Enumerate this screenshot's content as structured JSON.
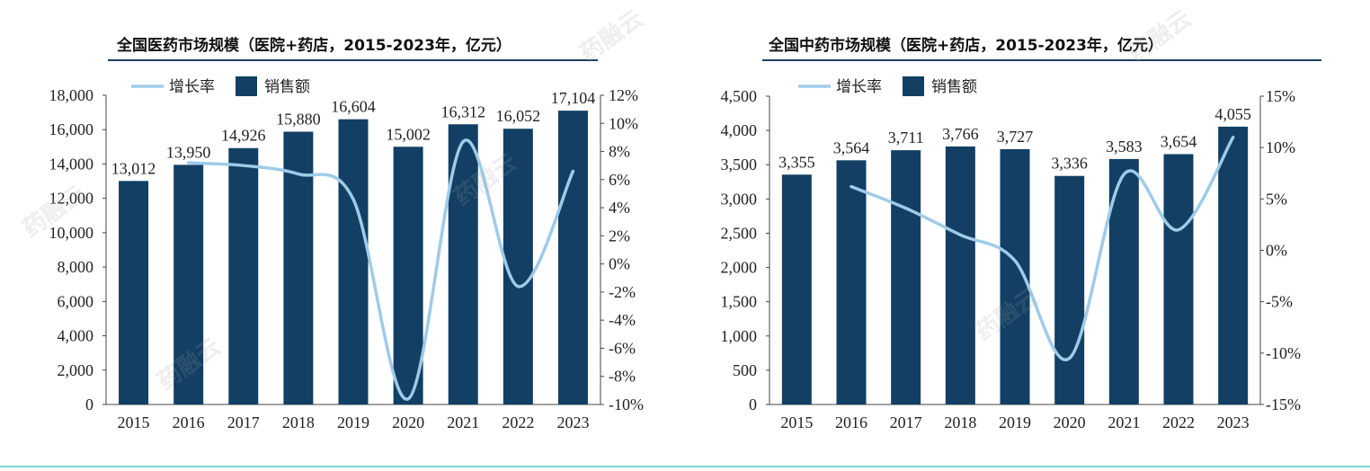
{
  "colors": {
    "bar": "#123f63",
    "line": "#9fcbe8",
    "rule": "#1c3f5e",
    "accent": "#7ed3d6"
  },
  "watermark": "药融云",
  "chart_data": [
    {
      "type": "bar",
      "title": "全国医药市场规模（医院+药店，2015-2023年，亿元）",
      "legend": {
        "line_label": "增长率",
        "bar_label": "销售额"
      },
      "categories": [
        "2015",
        "2016",
        "2017",
        "2018",
        "2019",
        "2020",
        "2021",
        "2022",
        "2023"
      ],
      "values": [
        13012,
        13950,
        14926,
        15880,
        16604,
        15002,
        16312,
        16052,
        17104
      ],
      "value_labels": [
        "13,012",
        "13,950",
        "14,926",
        "15,880",
        "16,604",
        "15,002",
        "16,312",
        "16,052",
        "17,104"
      ],
      "growth": [
        null,
        7.2,
        7.0,
        6.4,
        4.6,
        -9.6,
        8.7,
        -1.6,
        6.6
      ],
      "ylim": [
        0,
        18000
      ],
      "yticks": [
        "18,000",
        "16,000",
        "14,000",
        "12,000",
        "10,000",
        "8,000",
        "6,000",
        "4,000",
        "2,000",
        "0"
      ],
      "y2lim": [
        -10,
        12
      ],
      "y2ticks": [
        "12%",
        "10%",
        "8%",
        "6%",
        "4%",
        "2%",
        "0%",
        "-2%",
        "-4%",
        "-6%",
        "-8%",
        "-10%"
      ]
    },
    {
      "type": "bar",
      "title": "全国中药市场规模（医院+药店，2015-2023年，亿元）",
      "legend": {
        "line_label": "增长率",
        "bar_label": "销售额"
      },
      "categories": [
        "2015",
        "2016",
        "2017",
        "2018",
        "2019",
        "2020",
        "2021",
        "2022",
        "2023"
      ],
      "values": [
        3355,
        3564,
        3711,
        3766,
        3727,
        3336,
        3583,
        3654,
        4055
      ],
      "value_labels": [
        "3,355",
        "3,564",
        "3,711",
        "3,766",
        "3,727",
        "3,336",
        "3,583",
        "3,654",
        "4,055"
      ],
      "growth": [
        null,
        6.2,
        4.1,
        1.5,
        -1.0,
        -10.5,
        7.4,
        2.0,
        11.0
      ],
      "ylim": [
        0,
        4500
      ],
      "yticks": [
        "4,500",
        "4,000",
        "3,500",
        "3,000",
        "2,500",
        "2,000",
        "1,500",
        "1,000",
        "500",
        "0"
      ],
      "y2lim": [
        -15,
        15
      ],
      "y2ticks": [
        "15%",
        "10%",
        "5%",
        "0%",
        "-5%",
        "-10%",
        "-15%"
      ]
    }
  ]
}
